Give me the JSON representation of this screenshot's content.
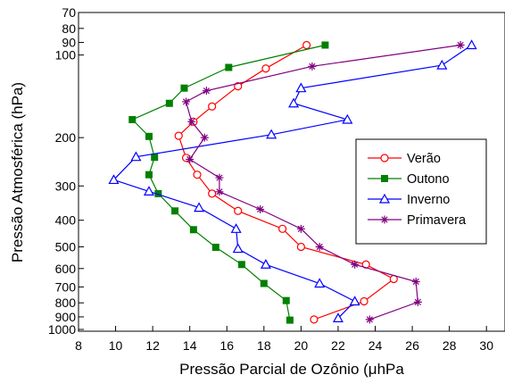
{
  "chart_data": {
    "type": "line",
    "xlabel": "Pressão Parcial de Ozônio (μhPa",
    "ylabel": "Pressão Atmosférica (hPa)",
    "xlim": [
      8,
      31
    ],
    "ylim": [
      1000,
      70
    ],
    "yscale": "log",
    "xticks": [
      8,
      10,
      12,
      14,
      16,
      18,
      20,
      22,
      24,
      26,
      28,
      30
    ],
    "yticks": [
      70,
      80,
      90,
      100,
      200,
      300,
      400,
      500,
      600,
      700,
      800,
      900,
      1000
    ],
    "legend_position": "right",
    "series": [
      {
        "name": "Verão",
        "color": "#ff0000",
        "marker": "circle-open",
        "points": [
          [
            20.3,
            92
          ],
          [
            18.1,
            112
          ],
          [
            16.6,
            130
          ],
          [
            15.2,
            154
          ],
          [
            14.2,
            175
          ],
          [
            13.4,
            197
          ],
          [
            13.8,
            237
          ],
          [
            14.4,
            273
          ],
          [
            15.2,
            320
          ],
          [
            16.6,
            370
          ],
          [
            19.0,
            430
          ],
          [
            20.0,
            500
          ],
          [
            23.5,
            580
          ],
          [
            25.0,
            655
          ],
          [
            23.4,
            790
          ],
          [
            20.7,
            920
          ]
        ]
      },
      {
        "name": "Outono",
        "color": "#008000",
        "marker": "square-filled",
        "points": [
          [
            21.3,
            92
          ],
          [
            16.1,
            111
          ],
          [
            13.7,
            132
          ],
          [
            12.9,
            150
          ],
          [
            10.9,
            172
          ],
          [
            11.8,
            198
          ],
          [
            12.1,
            236
          ],
          [
            11.8,
            273
          ],
          [
            12.3,
            320
          ],
          [
            13.2,
            370
          ],
          [
            14.2,
            433
          ],
          [
            15.4,
            502
          ],
          [
            16.8,
            580
          ],
          [
            18.0,
            680
          ],
          [
            19.2,
            785
          ],
          [
            19.4,
            925
          ]
        ]
      },
      {
        "name": "Inverno",
        "color": "#0000ff",
        "marker": "triangle-open",
        "points": [
          [
            29.2,
            92
          ],
          [
            27.6,
            109
          ],
          [
            20.0,
            132
          ],
          [
            19.6,
            150
          ],
          [
            22.5,
            172
          ],
          [
            18.4,
            195
          ],
          [
            11.1,
            235
          ],
          [
            9.9,
            285
          ],
          [
            11.8,
            314
          ],
          [
            14.5,
            360
          ],
          [
            16.5,
            430
          ],
          [
            16.6,
            508
          ],
          [
            18.1,
            580
          ],
          [
            21.0,
            680
          ],
          [
            22.9,
            790
          ],
          [
            22.0,
            910
          ]
        ]
      },
      {
        "name": "Primavera",
        "color": "#800080",
        "marker": "star",
        "points": [
          [
            28.6,
            92
          ],
          [
            20.6,
            110
          ],
          [
            14.9,
            135
          ],
          [
            13.8,
            148
          ],
          [
            14.1,
            175
          ],
          [
            14.8,
            200
          ],
          [
            14.0,
            240
          ],
          [
            15.6,
            280
          ],
          [
            15.6,
            315
          ],
          [
            17.8,
            365
          ],
          [
            20.0,
            430
          ],
          [
            21.0,
            500
          ],
          [
            22.9,
            580
          ],
          [
            26.2,
            670
          ],
          [
            26.3,
            795
          ],
          [
            23.7,
            920
          ]
        ]
      }
    ]
  }
}
